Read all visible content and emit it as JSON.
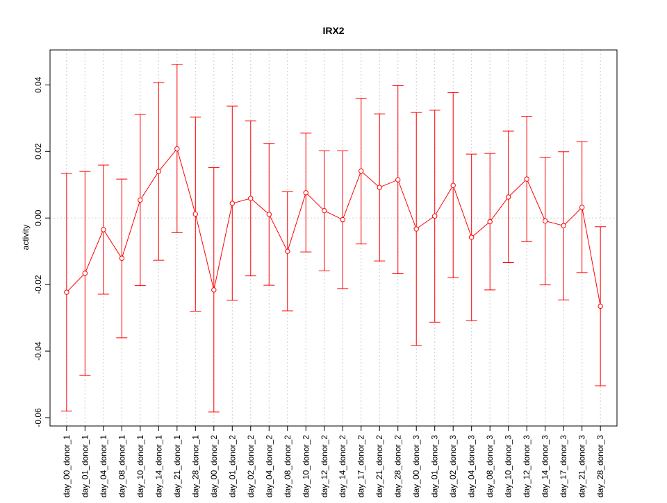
{
  "chart_data": {
    "type": "line",
    "title": "IRX2",
    "xlabel": "",
    "ylabel": "activity",
    "ylim": [
      -0.0625,
      0.0505
    ],
    "yticks": [
      -0.06,
      -0.04,
      -0.02,
      0.0,
      0.02,
      0.04
    ],
    "ytick_labels": [
      "-0.06",
      "-0.04",
      "-0.02",
      "0.00",
      "0.02",
      "0.04"
    ],
    "grid": true,
    "color": "#ff0000",
    "categories": [
      "day_00_donor_1",
      "day_01_donor_1",
      "day_04_donor_1",
      "day_08_donor_1",
      "day_10_donor_1",
      "day_14_donor_1",
      "day_21_donor_1",
      "day_28_donor_1",
      "day_00_donor_2",
      "day_01_donor_2",
      "day_02_donor_2",
      "day_04_donor_2",
      "day_08_donor_2",
      "day_10_donor_2",
      "day_12_donor_2",
      "day_14_donor_2",
      "day_17_donor_2",
      "day_21_donor_2",
      "day_28_donor_2",
      "day_00_donor_3",
      "day_01_donor_3",
      "day_02_donor_3",
      "day_04_donor_3",
      "day_08_donor_3",
      "day_10_donor_3",
      "day_12_donor_3",
      "day_14_donor_3",
      "day_17_donor_3",
      "day_21_donor_3",
      "day_28_donor_3"
    ],
    "series": [
      {
        "values": [
          -0.0223,
          -0.0166,
          -0.0035,
          -0.0121,
          0.0054,
          0.014,
          0.0208,
          0.0012,
          -0.0216,
          0.0044,
          0.0059,
          0.0011,
          -0.01,
          0.0076,
          0.0022,
          -0.0005,
          0.0141,
          0.0092,
          0.0115,
          -0.0033,
          0.0006,
          0.0098,
          -0.0058,
          -0.0011,
          0.0063,
          0.0117,
          -0.0009,
          -0.0023,
          0.0032,
          -0.0265
        ],
        "upper": [
          0.0134,
          0.014,
          0.0159,
          0.0117,
          0.0311,
          0.0407,
          0.0462,
          0.0303,
          0.0152,
          0.0336,
          0.0292,
          0.0224,
          0.0079,
          0.0255,
          0.0202,
          0.0202,
          0.036,
          0.0313,
          0.0398,
          0.0317,
          0.0324,
          0.0377,
          0.0192,
          0.0194,
          0.0261,
          0.0306,
          0.0183,
          0.0199,
          0.0229,
          -0.0026
        ],
        "lower": [
          -0.058,
          -0.0473,
          -0.0229,
          -0.036,
          -0.0203,
          -0.0127,
          -0.0044,
          -0.028,
          -0.0583,
          -0.0247,
          -0.0174,
          -0.0202,
          -0.0279,
          -0.0102,
          -0.0159,
          -0.0212,
          -0.0078,
          -0.0129,
          -0.0167,
          -0.0383,
          -0.0313,
          -0.018,
          -0.0308,
          -0.0216,
          -0.0134,
          -0.0071,
          -0.0201,
          -0.0246,
          -0.0164,
          -0.0504
        ]
      }
    ]
  }
}
